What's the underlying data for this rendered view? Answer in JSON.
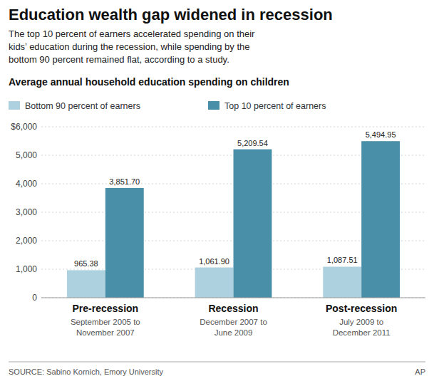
{
  "chart_data": {
    "type": "bar",
    "title": "Education wealth gap widened in recession",
    "subtitle": "The top 10 percent of earners accelerated spending on their\nkids’ education during the recession, while spending by the\nbottom 90 percent remained flat, according to a study.",
    "annotations": [
      "Average annual household education spending on children"
    ],
    "categories": [
      "Pre-recession",
      "Recession",
      "Post-recession"
    ],
    "sublabels": [
      "September 2005 to\nNovember 2007",
      "December 2007 to\nJune 2009",
      "July 2009 to\nDecember 2011"
    ],
    "series": [
      {
        "name": "Bottom 90 percent of earners",
        "color": "#add1de",
        "values": [
          965.38,
          1061.9,
          1087.51
        ],
        "value_labels": [
          "965.38",
          "1,061.90",
          "1,087.51"
        ]
      },
      {
        "name": "Top 10 percent of earners",
        "color": "#4a8fa8",
        "values": [
          3851.7,
          5209.54,
          5494.95
        ],
        "value_labels": [
          "3,851.70",
          "5,209.54",
          "5,494.95"
        ]
      }
    ],
    "ylim": [
      0,
      6000
    ],
    "yticks": [
      0,
      {
        "value": 1000,
        "label": "1,000"
      },
      {
        "value": 2000,
        "label": "2,000"
      },
      {
        "value": 3000,
        "label": "3,000"
      },
      {
        "value": 4000,
        "label": "4,000"
      },
      {
        "value": 5000,
        "label": "5,000"
      },
      {
        "value": 6000,
        "label": "$6,000"
      }
    ],
    "grid": true,
    "legend": "top",
    "data_labels": true,
    "source": "SOURCE: Sabino Kornich, Emory University",
    "attribution": "AP"
  }
}
